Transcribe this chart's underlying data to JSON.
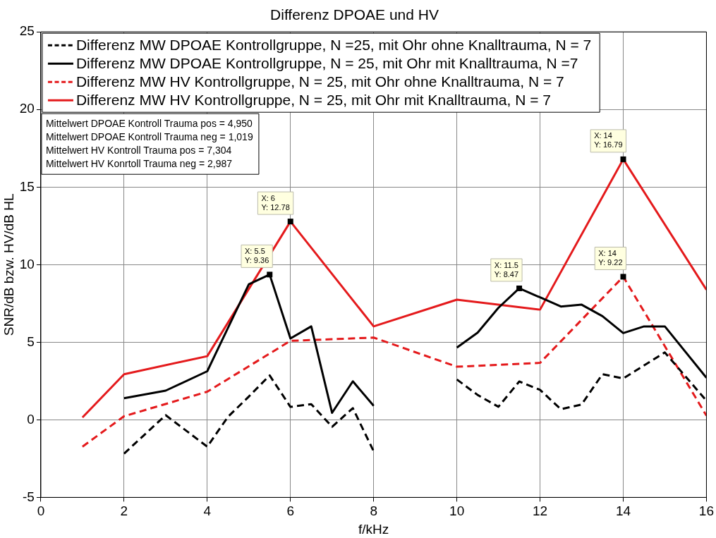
{
  "chart_data": {
    "type": "line",
    "title": "Differenz DPOAE und HV",
    "xlabel": "f/kHz",
    "ylabel": "SNR/dB bzw. HV/dB HL",
    "xlim": [
      0,
      16
    ],
    "xticks": [
      0,
      2,
      4,
      6,
      8,
      10,
      12,
      14,
      16
    ],
    "ylim": [
      -5,
      25
    ],
    "yticks": [
      -5,
      0,
      5,
      10,
      15,
      20,
      25
    ],
    "grid": true,
    "legend": "top left",
    "marker": "none",
    "series": [
      {
        "name": "Differenz MW DPOAE Kontrollgruppe, N =25, mit Ohr ohne Knalltrauma, N = 7",
        "color": "#000000",
        "line_style": "dashed",
        "x": [
          2,
          3,
          4,
          4.5,
          5,
          5.5,
          6,
          6.5,
          7,
          7.5,
          8,
          9,
          10,
          10.5,
          11,
          11.5,
          12,
          12.5,
          13,
          13.5,
          14,
          15,
          16
        ],
        "values": [
          -2.18,
          0.3,
          -1.73,
          0.2,
          1.5,
          2.86,
          0.83,
          1.01,
          -0.45,
          0.75,
          -2.03,
          null,
          2.6,
          1.6,
          0.84,
          2.47,
          1.93,
          0.68,
          0.99,
          2.94,
          2.66,
          4.34,
          1.23
        ]
      },
      {
        "name": "Differenz MW DPOAE Kontrollgruppe, N = 25, mit Ohr mit Knalltrauma, N =7",
        "color": "#000000",
        "line_style": "solid",
        "x": [
          2,
          3,
          4,
          5,
          5.5,
          6,
          6.5,
          7,
          7.5,
          8,
          9,
          10,
          10.5,
          11,
          11.5,
          12,
          12.5,
          13,
          13.5,
          14,
          14.5,
          15,
          16
        ],
        "values": [
          1.39,
          1.88,
          3.13,
          8.74,
          9.36,
          5.24,
          6.02,
          0.45,
          2.48,
          0.9,
          null,
          4.65,
          5.62,
          7.22,
          8.47,
          7.89,
          7.3,
          7.42,
          6.68,
          5.59,
          6.02,
          6.02,
          2.71
        ]
      },
      {
        "name": "Differenz MW HV Kontrollgruppe, N = 25, mit Ohr ohne Knalltrauma, N = 7",
        "color": "#e41a1c",
        "line_style": "dashed",
        "x": [
          1,
          2,
          4,
          6,
          8,
          10,
          12,
          14,
          16
        ],
        "values": [
          -1.73,
          0.23,
          1.81,
          5.09,
          5.3,
          3.42,
          3.67,
          9.22,
          0.27
        ]
      },
      {
        "name": "Differenz MW HV Kontrollgruppe, N = 25, mit Ohr mit Knalltrauma, N = 7",
        "color": "#e41a1c",
        "line_style": "solid",
        "x": [
          1,
          2,
          4,
          6,
          8,
          10,
          12,
          14,
          16
        ],
        "values": [
          0.15,
          2.94,
          4.1,
          12.78,
          6.02,
          7.74,
          7.1,
          16.79,
          8.38
        ]
      }
    ],
    "annotations": [
      "Mittelwert DPOAE Kontroll Trauma pos = 4,950",
      "Mittelwert DPOAE Kontroll Trauma neg = 1,019",
      "Mittelwert HV Kontroll Trauma pos = 7,304",
      "Mittelwert HV Konrtoll Trauma neg = 2,987",
      {
        "text": "X: 5.5\nY: 9.36",
        "x": 5.5,
        "y": 9.36
      },
      {
        "text": "X: 6\nY: 12.78",
        "x": 6,
        "y": 12.78
      },
      {
        "text": "X: 11.5\nY: 8.47",
        "x": 11.5,
        "y": 8.47
      },
      {
        "text": "X: 14\nY: 16.79",
        "x": 14,
        "y": 16.79
      },
      {
        "text": "X: 14\nY: 9.22",
        "x": 14,
        "y": 9.22
      }
    ]
  }
}
